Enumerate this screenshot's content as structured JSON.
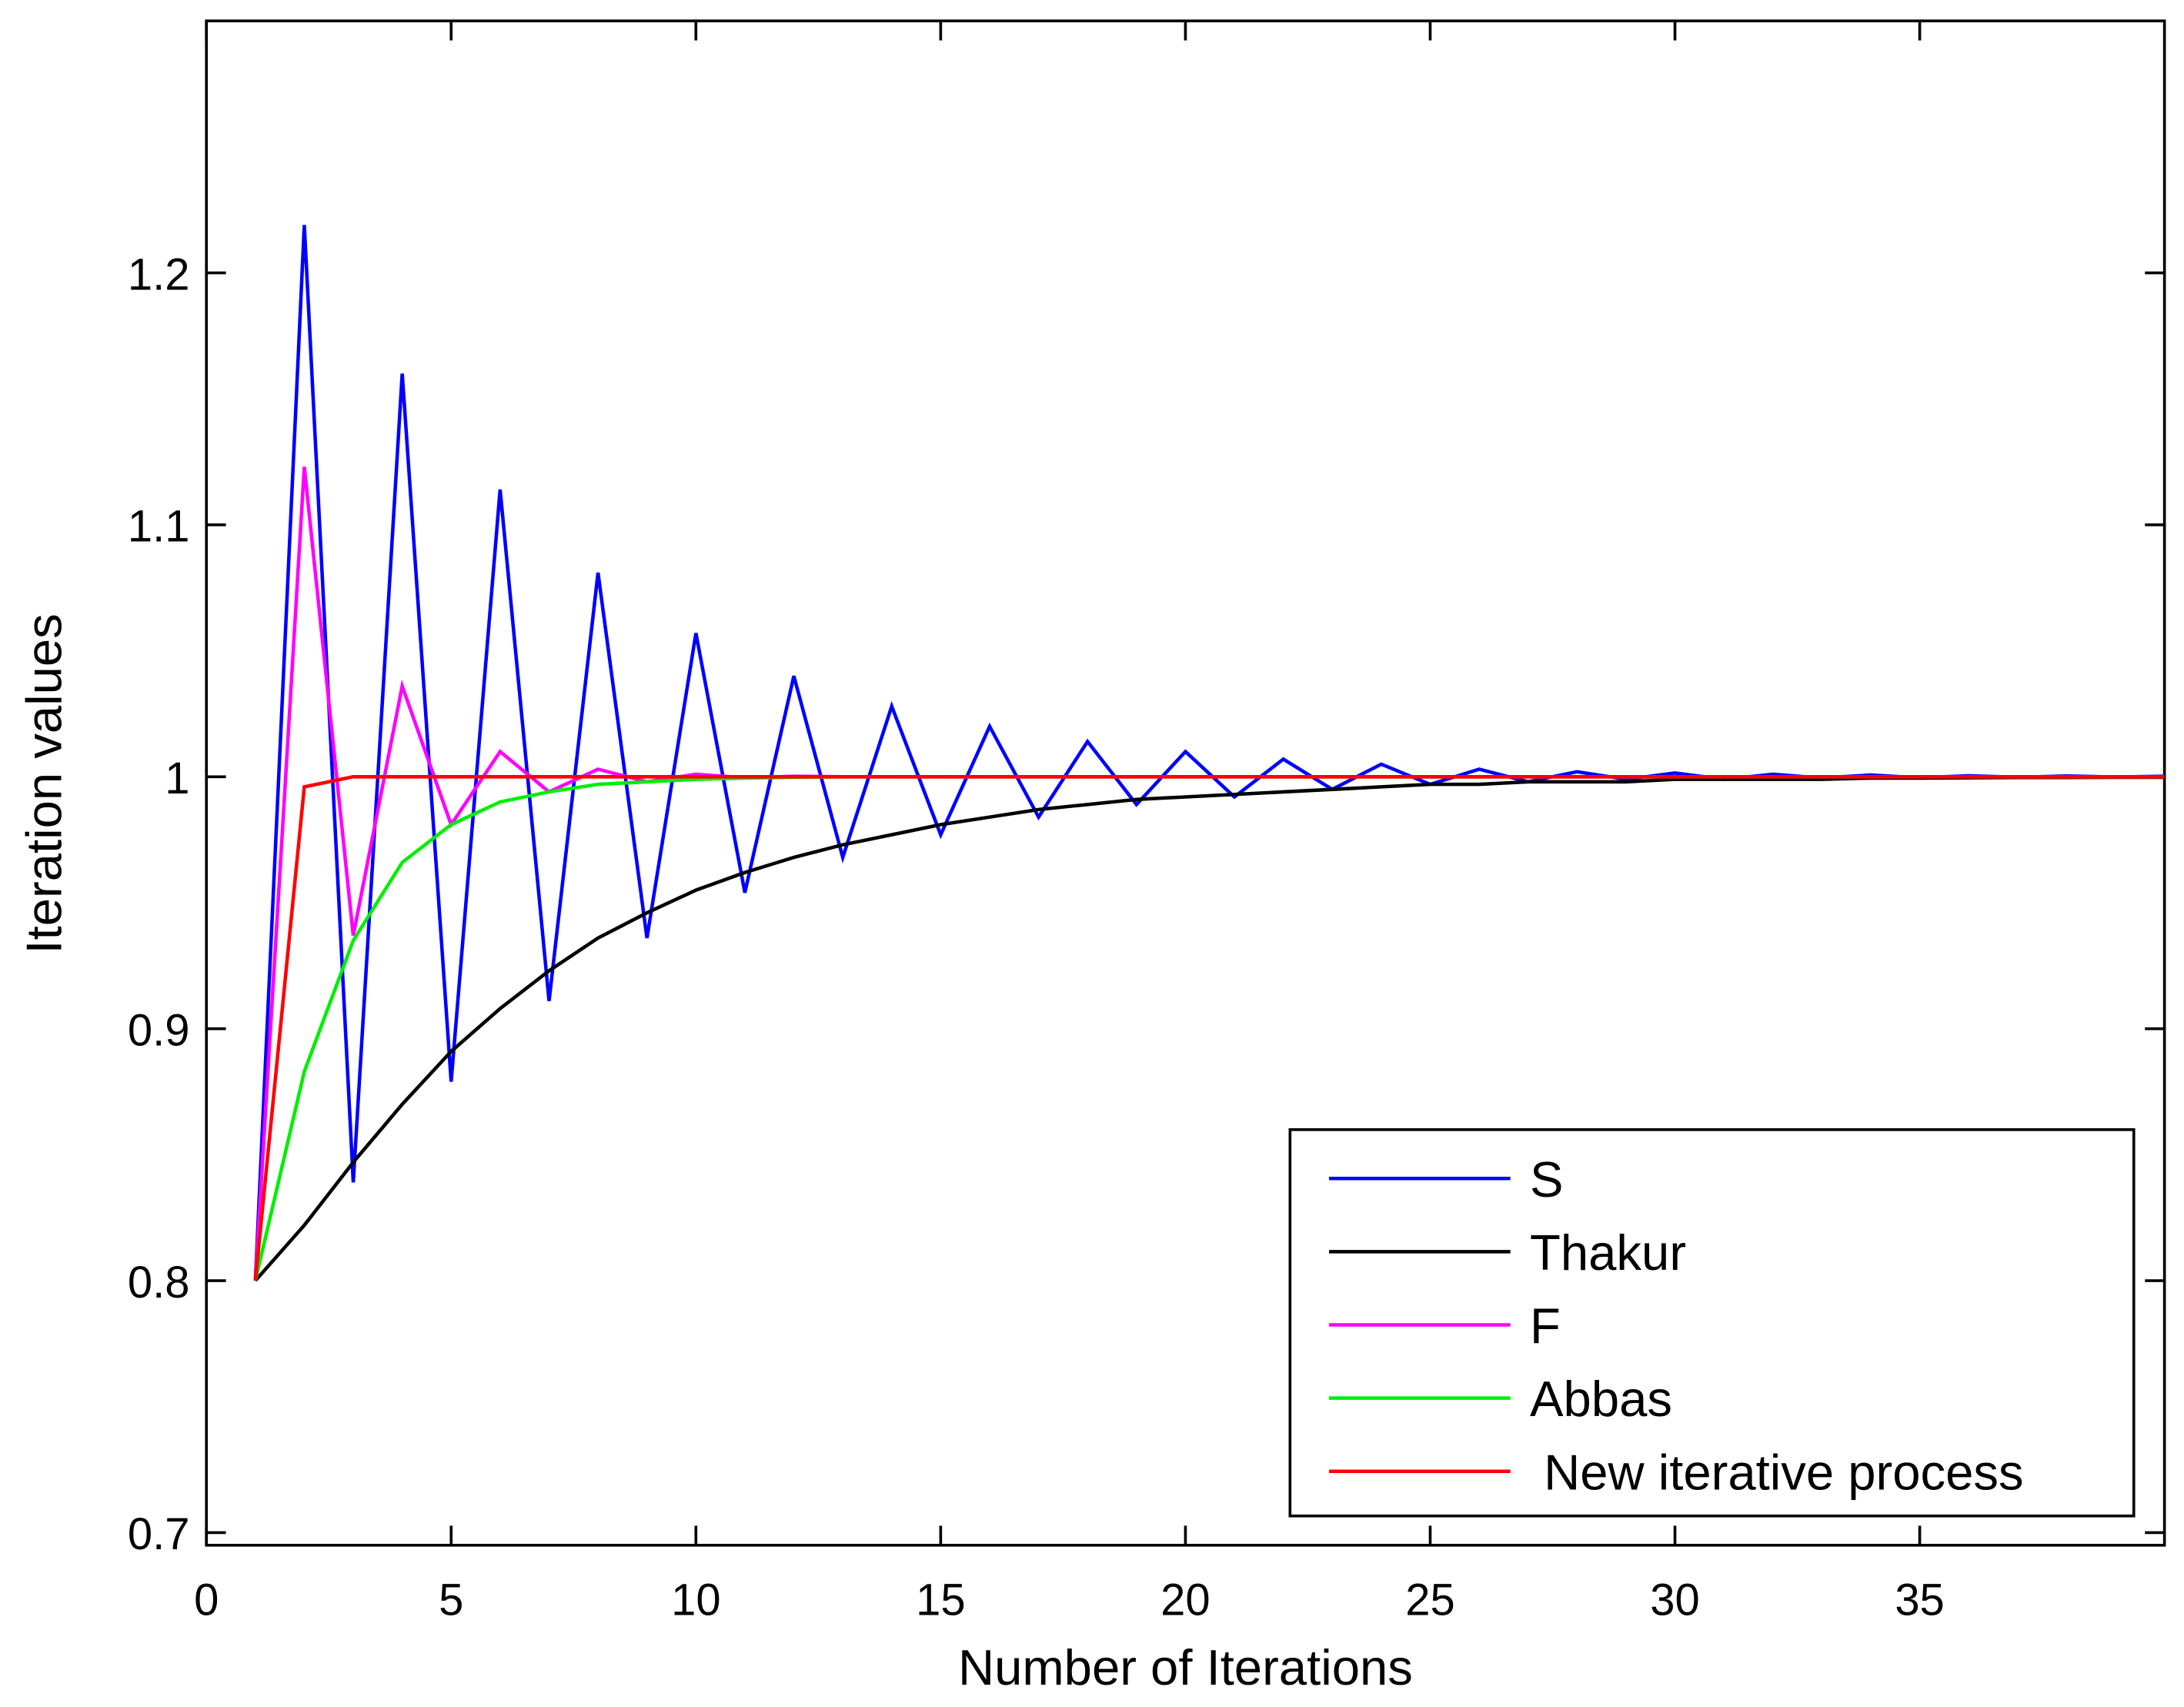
{
  "chart_data": {
    "type": "line",
    "xlabel": "Number of Iterations",
    "ylabel": "Iteration values",
    "x": [
      1,
      2,
      3,
      4,
      5,
      6,
      7,
      8,
      9,
      10,
      11,
      12,
      13,
      14,
      15,
      16,
      17,
      18,
      19,
      20,
      21,
      22,
      23,
      24,
      25,
      26,
      27,
      28,
      29,
      30,
      31,
      32,
      33,
      34,
      35,
      36,
      37,
      38,
      39,
      40
    ],
    "series": [
      {
        "name": "S",
        "color": "#0000ff",
        "values": [
          0.8,
          1.219,
          0.839,
          1.16,
          0.879,
          1.114,
          0.911,
          1.081,
          0.936,
          1.057,
          0.954,
          1.04,
          0.968,
          1.028,
          0.977,
          1.02,
          0.984,
          1.014,
          0.989,
          1.01,
          0.992,
          1.007,
          0.995,
          1.005,
          0.997,
          1.003,
          0.998,
          1.002,
          0.999,
          1.0015,
          0.999,
          1.001,
          0.9995,
          1.0007,
          0.9996,
          1.0004,
          0.9998,
          1.0003,
          0.9999,
          1.0002
        ]
      },
      {
        "name": "Thakur",
        "color": "#000000",
        "values": [
          0.8,
          0.822,
          0.847,
          0.87,
          0.891,
          0.908,
          0.923,
          0.936,
          0.946,
          0.955,
          0.962,
          0.968,
          0.973,
          0.977,
          0.981,
          0.984,
          0.987,
          0.989,
          0.991,
          0.992,
          0.993,
          0.994,
          0.995,
          0.996,
          0.997,
          0.997,
          0.998,
          0.998,
          0.998,
          0.999,
          0.999,
          0.999,
          0.999,
          0.9995,
          0.9995,
          0.9996,
          0.9997,
          0.9997,
          0.9998,
          0.9998
        ]
      },
      {
        "name": "F",
        "color": "#ff00ff",
        "values": [
          0.8,
          1.123,
          0.937,
          1.036,
          0.981,
          1.01,
          0.994,
          1.003,
          0.998,
          1.001,
          0.9996,
          1.0002,
          1,
          1,
          1,
          1,
          1,
          1,
          1,
          1,
          1,
          1,
          1,
          1,
          1,
          1,
          1,
          1,
          1,
          1,
          1,
          1,
          1,
          1,
          1,
          1,
          1,
          1,
          1,
          1
        ]
      },
      {
        "name": "Abbas",
        "color": "#00ee00",
        "values": [
          0.8,
          0.883,
          0.935,
          0.966,
          0.981,
          0.99,
          0.994,
          0.997,
          0.998,
          0.999,
          0.9995,
          0.9998,
          1,
          1,
          1,
          1,
          1,
          1,
          1,
          1,
          1,
          1,
          1,
          1,
          1,
          1,
          1,
          1,
          1,
          1,
          1,
          1,
          1,
          1,
          1,
          1,
          1,
          1,
          1,
          1
        ]
      },
      {
        "name": " New iterative process",
        "color": "#ff0000",
        "values": [
          0.8,
          0.996,
          1,
          1,
          1,
          1,
          1,
          1,
          1,
          1,
          1,
          1,
          1,
          1,
          1,
          1,
          1,
          1,
          1,
          1,
          1,
          1,
          1,
          1,
          1,
          1,
          1,
          1,
          1,
          1,
          1,
          1,
          1,
          1,
          1,
          1,
          1,
          1,
          1,
          1
        ]
      }
    ],
    "xlim": [
      0,
      40
    ],
    "xticks": [
      0,
      5,
      10,
      15,
      20,
      25,
      30,
      35
    ],
    "ylim": [
      0.695,
      1.3
    ],
    "yticks": [
      0.7,
      0.8,
      0.9,
      1,
      1.1,
      1.2
    ],
    "legend": "lower right"
  }
}
